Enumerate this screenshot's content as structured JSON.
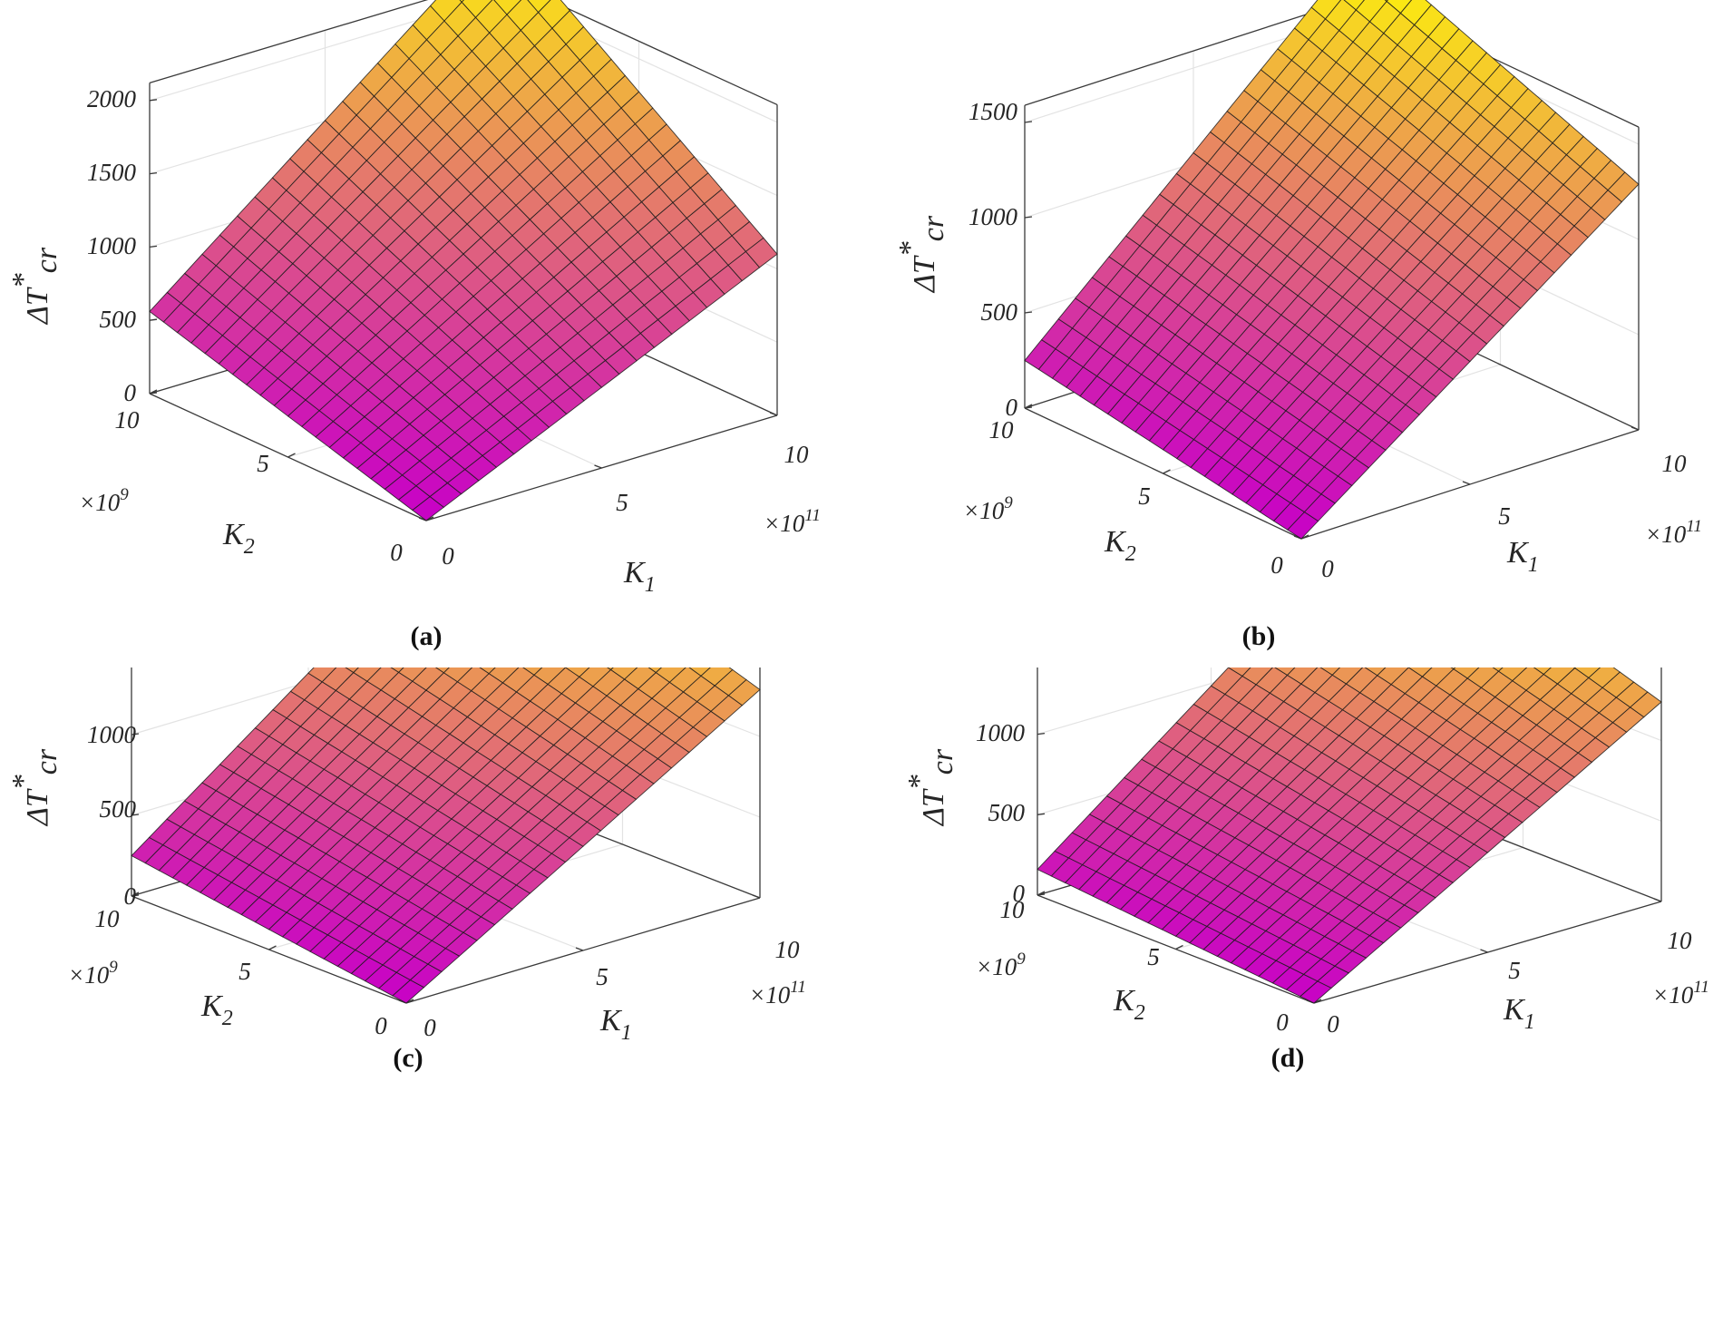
{
  "figure": {
    "z_axis_label": "ΔT",
    "z_sup": "*",
    "z_sub": "cr"
  },
  "chart_data": [
    {
      "type": "surface",
      "caption": "(a)",
      "xlabel": "K",
      "xlabel_sub": "1",
      "x_multiplier": "×10",
      "x_exponent": "11",
      "ylabel": "K",
      "ylabel_sub": "2",
      "y_multiplier": "×10",
      "y_exponent": "9",
      "x_ticks": [
        "0",
        "5",
        "10"
      ],
      "y_ticks": [
        "0",
        "5",
        "10"
      ],
      "xlim": [
        0,
        10
      ],
      "ylim": [
        0,
        10
      ],
      "z_ticks": [
        "0",
        "500",
        "1000",
        "1500",
        "2000"
      ],
      "zlim": [
        0,
        2000
      ],
      "corners": {
        "k1_0_k2_0": 0,
        "k1_10_k2_0": 1100,
        "k1_0_k2_10": 560,
        "k1_10_k2_10": 2450
      },
      "grid": 20,
      "colormap": "spring"
    },
    {
      "type": "surface",
      "caption": "(b)",
      "xlabel": "K",
      "xlabel_sub": "1",
      "x_multiplier": "×10",
      "x_exponent": "11",
      "ylabel": "K",
      "ylabel_sub": "2",
      "y_multiplier": "×10",
      "y_exponent": "9",
      "x_ticks": [
        "0",
        "5",
        "10"
      ],
      "y_ticks": [
        "0",
        "5",
        "10"
      ],
      "xlim": [
        0,
        10
      ],
      "ylim": [
        0,
        10
      ],
      "z_ticks": [
        "0",
        "500",
        "1000",
        "1500"
      ],
      "zlim": [
        0,
        1500
      ],
      "corners": {
        "k1_0_k2_0": 0,
        "k1_10_k2_0": 1290,
        "k1_0_k2_10": 250,
        "k1_10_k2_10": 1860
      },
      "grid": 20,
      "colormap": "spring"
    },
    {
      "type": "surface",
      "caption": "(c)",
      "xlabel": "K",
      "xlabel_sub": "1",
      "x_multiplier": "×10",
      "x_exponent": "11",
      "ylabel": "K",
      "ylabel_sub": "2",
      "y_multiplier": "×10",
      "y_exponent": "9",
      "x_ticks": [
        "0",
        "5",
        "10"
      ],
      "y_ticks": [
        "0",
        "5",
        "10"
      ],
      "xlim": [
        0,
        10
      ],
      "ylim": [
        0,
        10
      ],
      "z_ticks": [
        "0",
        "500",
        "1000",
        "1500"
      ],
      "zlim": [
        0,
        1500
      ],
      "corners": {
        "k1_0_k2_0": 0,
        "k1_10_k2_0": 1290,
        "k1_0_k2_10": 250,
        "k1_10_k2_10": 1860
      },
      "grid": 20,
      "colormap": "spring"
    },
    {
      "type": "surface",
      "caption": "(d)",
      "xlabel": "K",
      "xlabel_sub": "1",
      "x_multiplier": "×10",
      "x_exponent": "11",
      "ylabel": "K",
      "ylabel_sub": "2",
      "y_multiplier": "×10",
      "y_exponent": "9",
      "x_ticks": [
        "0",
        "5",
        "10"
      ],
      "y_ticks": [
        "0",
        "5",
        "10"
      ],
      "xlim": [
        0,
        10
      ],
      "ylim": [
        0,
        10
      ],
      "z_ticks": [
        "0",
        "500",
        "1000",
        "1500"
      ],
      "zlim": [
        0,
        1500
      ],
      "corners": {
        "k1_0_k2_0": 0,
        "k1_10_k2_0": 1240,
        "k1_0_k2_10": 160,
        "k1_10_k2_10": 1810
      },
      "grid": 20,
      "colormap": "spring"
    }
  ]
}
